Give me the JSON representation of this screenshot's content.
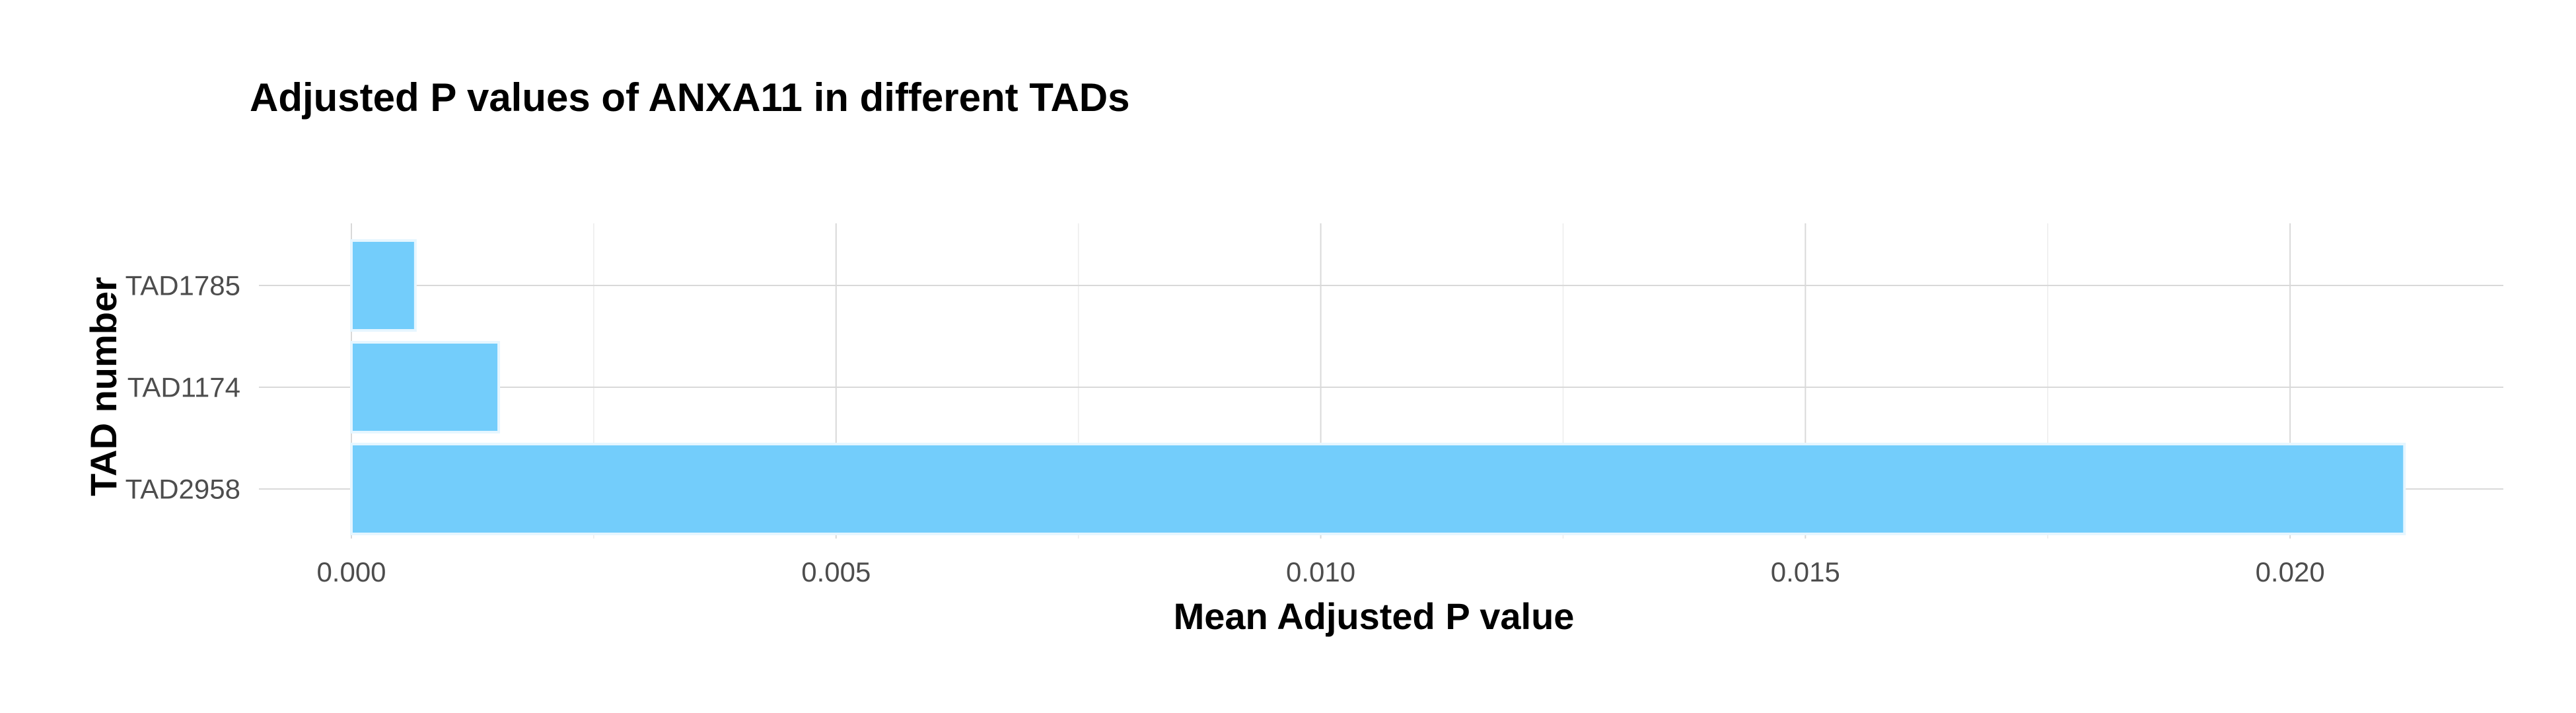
{
  "chart_data": {
    "type": "bar",
    "orientation": "horizontal",
    "title": "Adjusted P values of ANXA11 in different TADs",
    "xlabel": "Mean Adjusted P value",
    "ylabel": "TAD number",
    "categories": [
      "TAD1785",
      "TAD1174",
      "TAD2958"
    ],
    "values": [
      0.00066,
      0.00152,
      0.02118
    ],
    "xlim": [
      0,
      0.0222
    ],
    "xticks": [
      0,
      0.005,
      0.01,
      0.015,
      0.02
    ],
    "xtick_labels": [
      "0.000",
      "0.005",
      "0.010",
      "0.015",
      "0.020"
    ],
    "grid": true,
    "bar_color": "#73cdfb"
  }
}
